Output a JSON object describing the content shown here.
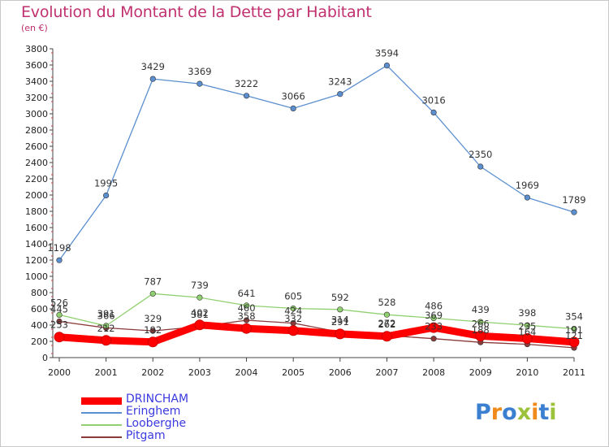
{
  "title": "Evolution du Montant de la Dette par Habitant",
  "subtitle": "(en €)",
  "brand": "Proxiti",
  "chart_data": {
    "type": "line",
    "x": [
      "2000",
      "2001",
      "2002",
      "2003",
      "2004",
      "2005",
      "2006",
      "2007",
      "2008",
      "2009",
      "2010",
      "2011"
    ],
    "ylim": [
      0,
      3800
    ],
    "yticks": [
      0,
      200,
      400,
      600,
      800,
      1000,
      1200,
      1400,
      1600,
      1800,
      2000,
      2200,
      2400,
      2600,
      2800,
      3000,
      3200,
      3400,
      3600,
      3800
    ],
    "grid": false,
    "legend_position": "bottom-left",
    "series": [
      {
        "name": "DRINCHAM",
        "color": "#ff0000",
        "values": [
          253,
          212,
          192,
          402,
          358,
          332,
          291,
          262,
          369,
          266,
          235,
          191
        ]
      },
      {
        "name": "Eringhem",
        "color": "#5b8fd0",
        "values": [
          1198,
          1995,
          3429,
          3369,
          3222,
          3066,
          3243,
          3594,
          3016,
          2350,
          1969,
          1789
        ]
      },
      {
        "name": "Looberghe",
        "color": "#90d070",
        "values": [
          526,
          391,
          787,
          739,
          641,
          605,
          592,
          528,
          486,
          439,
          398,
          354
        ]
      },
      {
        "name": "Pitgam",
        "color": "#8b3a3a",
        "values": [
          445,
          366,
          329,
          381,
          460,
          424,
          314,
          272,
          233,
          188,
          164,
          121
        ]
      }
    ]
  }
}
